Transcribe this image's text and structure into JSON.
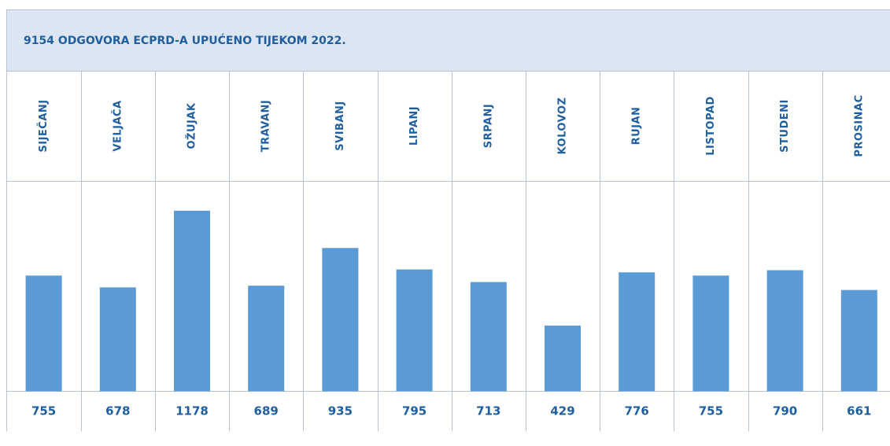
{
  "chart_data": {
    "type": "bar",
    "title": "9154 ODGOVORA ECPRD-A UPUĆENO TIJEKOM 2022.",
    "categories": [
      "SIJEČANJ",
      "VELJAČA",
      "OŽUJAK",
      "TRAVANJ",
      "SVIBANJ",
      "LIPANJ",
      "SRPANJ",
      "KOLOVOZ",
      "RUJAN",
      "LISTOPAD",
      "STUDENI",
      "PROSINAC"
    ],
    "values": [
      755,
      678,
      1178,
      689,
      935,
      795,
      713,
      429,
      776,
      755,
      790,
      661
    ],
    "color": "#5b9bd5"
  }
}
